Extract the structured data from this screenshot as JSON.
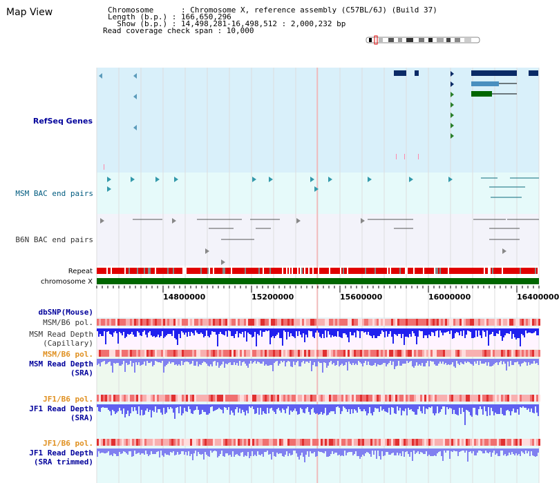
{
  "page": {
    "title": "Map View"
  },
  "info": {
    "lines": [
      "Chromosome      : Chromosome X, reference assembly (C57BL/6J) (Build 37)",
      "Length (b.p.) : 166,650,296",
      "  Show (b.p.) : 14,498,281-16,498,512 : 2,000,232 bp",
      "Read coverage check span : 10,000"
    ]
  },
  "tracks": {
    "refseq": {
      "label": "RefSeq Genes",
      "color": "#00009b"
    },
    "msm_bac": {
      "label": "MSM BAC end pairs",
      "color": "#005b7f"
    },
    "b6n_bac": {
      "label": "B6N BAC end pairs",
      "color": "#333333"
    },
    "repeat": {
      "label": "Repeat",
      "color": "#000000"
    },
    "chromosome": {
      "label": "chromosome X",
      "color": "#000000"
    },
    "dbsnp": {
      "label": "dbSNP(Mouse)",
      "color": "#00009b"
    },
    "msm_pol": {
      "label": "MSM/B6 pol.",
      "color": "#333333"
    },
    "msm_depth_cap": {
      "label": "MSM Read Depth\n(Capillary)",
      "color": "#333333"
    },
    "msm_pol2": {
      "label": "MSM/B6 pol.",
      "color": "#e09020"
    },
    "msm_depth_sra": {
      "label": "MSM Read Depth\n(SRA)",
      "color": "#00009b"
    },
    "jf1_pol": {
      "label": "JF1/B6 pol.",
      "color": "#e09020"
    },
    "jf1_depth_sra": {
      "label": "JF1 Read Depth\n(SRA)",
      "color": "#00009b"
    },
    "jf1_pol2": {
      "label": "JF1/B6 pol.",
      "color": "#e09020"
    },
    "jf1_depth_trim": {
      "label": "JF1 Read Depth\n(SRA trimmed)",
      "color": "#00009b"
    }
  },
  "axis": {
    "ticks": [
      "14800000",
      "15200000",
      "15600000",
      "16000000",
      "16400000"
    ]
  },
  "colors": {
    "refseq_bg": "#d9f0fa",
    "msm_bg": "#e6fafa",
    "b6n_bg": "#f3f3fa",
    "chromosome_bar": "#006600",
    "repeat": "#e00000",
    "depth_blue": "#2020ee",
    "depth_light": "#8080f0",
    "pol_red": "#f07070",
    "highlight": "#ff9999"
  }
}
